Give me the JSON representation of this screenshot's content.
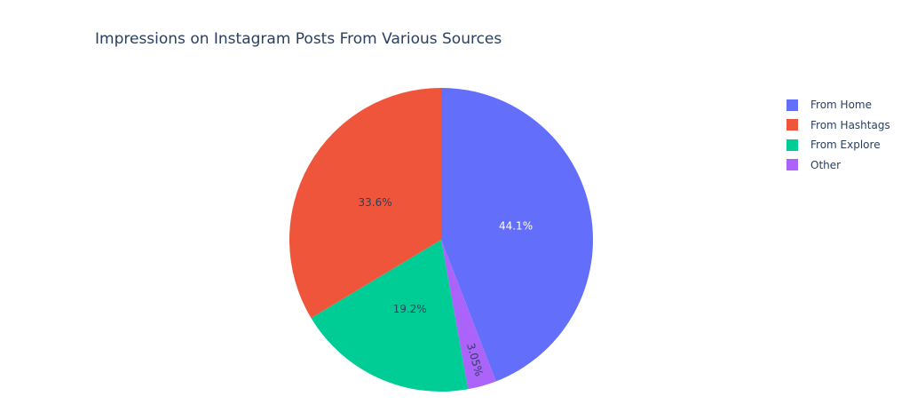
{
  "chart_data": {
    "type": "pie",
    "title": "Impressions on Instagram Posts From Various Sources",
    "legend_position": "top-right",
    "slices": [
      {
        "label": "From Home",
        "percent": 44.1,
        "text": "44.1%",
        "color": "#636efa",
        "text_color": "#ffffff"
      },
      {
        "label": "From Hashtags",
        "percent": 33.6,
        "text": "33.6%",
        "color": "#ef553b",
        "text_color": "#2a3f5f"
      },
      {
        "label": "From Explore",
        "percent": 19.2,
        "text": "19.2%",
        "color": "#00cc96",
        "text_color": "#2a3f5f"
      },
      {
        "label": "Other",
        "percent": 3.05,
        "text": "3.05%",
        "color": "#ab63fa",
        "text_color": "#2a3f5f"
      }
    ],
    "pie_order": [
      "From Home",
      "Other",
      "From Explore",
      "From Hashtags"
    ]
  }
}
